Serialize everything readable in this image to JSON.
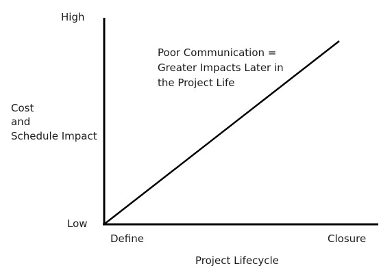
{
  "chart_data": {
    "type": "line",
    "xlabel": "Project Lifecycle",
    "ylabel": [
      "Cost",
      "and",
      "Schedule Impact"
    ],
    "x_ticks": [
      "Define",
      "Closure"
    ],
    "y_ticks": [
      "Low",
      "High"
    ],
    "series": [
      {
        "x": [
          "Define",
          "Closure"
        ],
        "y": [
          "Low",
          "High"
        ]
      }
    ],
    "annotation": [
      "Poor Communication =",
      "Greater Impacts Later in",
      "the Project Life"
    ],
    "grid": false,
    "line_color": "#000000"
  }
}
